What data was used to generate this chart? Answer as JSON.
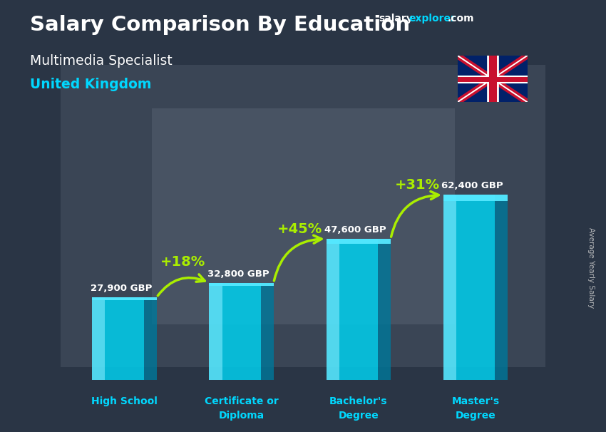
{
  "title_main": "Salary Comparison By Education",
  "subtitle1": "Multimedia Specialist",
  "subtitle2": "United Kingdom",
  "ylabel": "Average Yearly Salary",
  "categories": [
    "High School",
    "Certificate or\nDiploma",
    "Bachelor's\nDegree",
    "Master's\nDegree"
  ],
  "values": [
    27900,
    32800,
    47600,
    62400
  ],
  "value_labels": [
    "27,900 GBP",
    "32,800 GBP",
    "47,600 GBP",
    "62,400 GBP"
  ],
  "pct_labels": [
    "+18%",
    "+45%",
    "+31%"
  ],
  "bar_color_main": "#00cfee",
  "bar_color_light": "#55e8ff",
  "bar_color_dark": "#0099bb",
  "bar_color_side": "#007799",
  "bg_overlay": "#1a2535",
  "title_color": "#ffffff",
  "subtitle1_color": "#ffffff",
  "subtitle2_color": "#00d8ff",
  "value_label_color": "#ffffff",
  "pct_color": "#aaee00",
  "arrow_color": "#aaee00",
  "xlabel_color": "#00d8ff",
  "ylabel_color": "#cccccc",
  "site_salary_color": "#ffffff",
  "site_explorer_color": "#00d8ff",
  "ylim": [
    0,
    80000
  ],
  "bar_width": 0.55,
  "x_positions": [
    0,
    1,
    2,
    3
  ]
}
